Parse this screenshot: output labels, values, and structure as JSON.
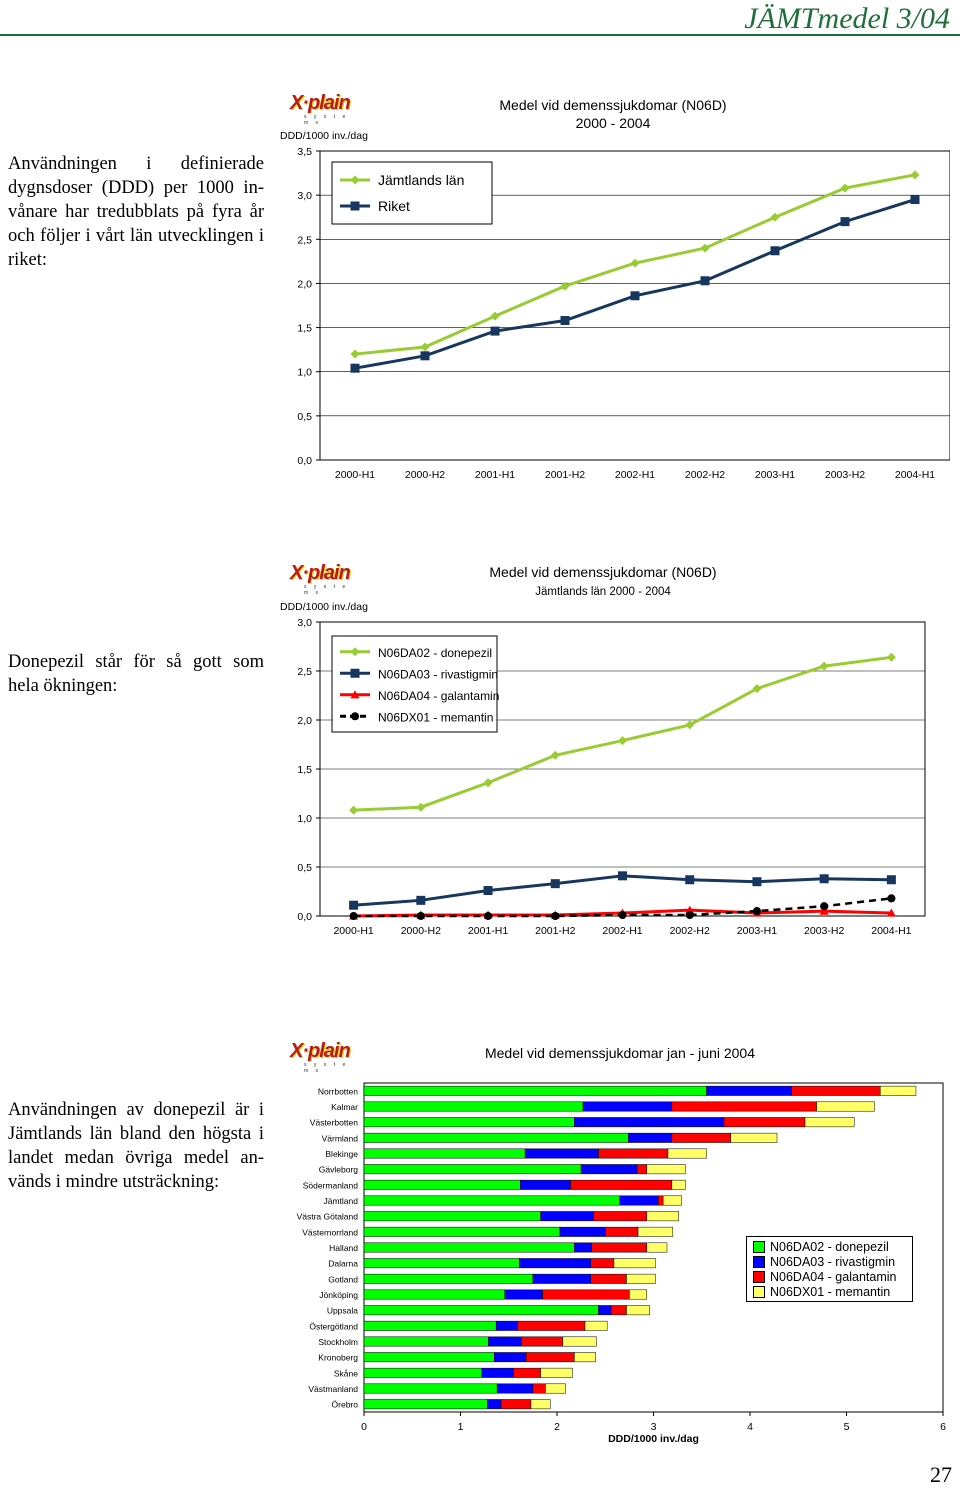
{
  "header": {
    "title": "JÄMTmedel 3/04"
  },
  "page_number": "27",
  "sections": [
    {
      "text": "Användningen i definierade dygnsdoser (DDD) per 1000 in-vånare har tredubblats på fyra år och följer i vårt län utvecklingen i riket:"
    },
    {
      "text": "Donepezil står för så gott som hela ökningen:"
    },
    {
      "text": "Användningen av donepezil är i Jämtlands län bland den högsta i landet medan övriga medel an-vänds i mindre utsträckning:"
    }
  ],
  "logo": {
    "main": "X·plain",
    "sub": "s y s t e m s"
  },
  "colors": {
    "green": "#99cc33",
    "navy": "#17375e",
    "red": "#ff0000",
    "black": "#000000",
    "bar_green": "#00ff00",
    "bar_blue": "#0000ff",
    "bar_red": "#ff0000",
    "bar_yellow": "#ffff66"
  },
  "chart_data": [
    {
      "type": "line",
      "title": "Medel vid demenssjukdomar (N06D)",
      "subtitle": "2000 - 2004",
      "ylabel": "DDD/1000 inv./dag",
      "ylim": [
        0,
        3.5
      ],
      "yticks": [
        "0,0",
        "0,5",
        "1,0",
        "1,5",
        "2,0",
        "2,5",
        "3,0",
        "3,5"
      ],
      "categories": [
        "2000-H1",
        "2000-H2",
        "2001-H1",
        "2001-H2",
        "2002-H1",
        "2002-H2",
        "2003-H1",
        "2003-H2",
        "2004-H1"
      ],
      "legend": "top-left",
      "series": [
        {
          "name": "Jämtlands län",
          "marker": "diamond",
          "color": "#99cc33",
          "values": [
            1.2,
            1.28,
            1.63,
            1.97,
            2.23,
            2.4,
            2.75,
            3.08,
            3.23
          ]
        },
        {
          "name": "Riket",
          "marker": "square",
          "color": "#17375e",
          "values": [
            1.04,
            1.18,
            1.46,
            1.58,
            1.86,
            2.03,
            2.37,
            2.7,
            2.95
          ]
        }
      ]
    },
    {
      "type": "line",
      "title": "Medel vid demenssjukdomar  (N06D)",
      "subtitle": "Jämtlands län 2000 - 2004",
      "ylabel": "DDD/1000 inv./dag",
      "ylim": [
        0,
        3.0
      ],
      "yticks": [
        "0,0",
        "0,5",
        "1,0",
        "1,5",
        "2,0",
        "2,5",
        "3,0"
      ],
      "categories": [
        "2000-H1",
        "2000-H2",
        "2001-H1",
        "2001-H2",
        "2002-H1",
        "2002-H2",
        "2003-H1",
        "2003-H2",
        "2004-H1"
      ],
      "legend": "top-left",
      "series": [
        {
          "name": "N06DA02 - donepezil",
          "marker": "diamond",
          "color": "#99cc33",
          "values": [
            1.08,
            1.11,
            1.36,
            1.64,
            1.79,
            1.95,
            2.32,
            2.55,
            2.64
          ]
        },
        {
          "name": "N06DA03 - rivastigmin",
          "marker": "square",
          "color": "#17375e",
          "values": [
            0.11,
            0.16,
            0.26,
            0.33,
            0.41,
            0.37,
            0.35,
            0.38,
            0.37
          ]
        },
        {
          "name": "N06DA04 - galantamin",
          "marker": "triangle",
          "color": "#ff0000",
          "values": [
            0.0,
            0.01,
            0.01,
            0.01,
            0.03,
            0.06,
            0.03,
            0.05,
            0.03
          ]
        },
        {
          "name": "N06DX01 - memantin",
          "marker": "circle",
          "color": "#000000",
          "dashed": true,
          "values": [
            0.0,
            0.0,
            0.0,
            0.0,
            0.01,
            0.01,
            0.05,
            0.1,
            0.18
          ]
        }
      ]
    },
    {
      "type": "bar",
      "orientation": "horizontal",
      "stacked": true,
      "title": "Medel vid demenssjukdomar jan - juni 2004",
      "xlabel": "DDD/1000 inv./dag",
      "xlim": [
        0,
        6
      ],
      "xticks": [
        "0",
        "1",
        "2",
        "3",
        "4",
        "5",
        "6"
      ],
      "legend": "right",
      "categories": [
        "Norrbotten",
        "Kalmar",
        "Västerbotten",
        "Värmland",
        "Blekinge",
        "Gävleborg",
        "Södermanland",
        "Jämtland",
        "Västra Götaland",
        "Västernorrland",
        "Halland",
        "Dalarna",
        "Gotland",
        "Jönköping",
        "Uppsala",
        "Östergötland",
        "Stockholm",
        "Kronoberg",
        "Skåne",
        "Västmanland",
        "Örebro"
      ],
      "series": [
        {
          "name": "N06DA02 - donepezil",
          "color": "#00ff00",
          "values": [
            3.55,
            2.27,
            2.18,
            2.74,
            1.67,
            2.25,
            1.62,
            2.65,
            1.83,
            2.03,
            2.18,
            1.61,
            1.75,
            1.46,
            2.43,
            1.37,
            1.29,
            1.35,
            1.22,
            1.38,
            1.28
          ]
        },
        {
          "name": "N06DA03 - rivastigmin",
          "color": "#0000ff",
          "values": [
            0.88,
            0.92,
            1.55,
            0.45,
            0.76,
            0.58,
            0.52,
            0.4,
            0.55,
            0.47,
            0.18,
            0.74,
            0.6,
            0.39,
            0.13,
            0.22,
            0.34,
            0.33,
            0.33,
            0.37,
            0.14
          ]
        },
        {
          "name": "N06DA04 - galantamin",
          "color": "#ff0000",
          "values": [
            0.92,
            1.5,
            0.84,
            0.61,
            0.72,
            0.1,
            1.05,
            0.05,
            0.55,
            0.34,
            0.57,
            0.24,
            0.37,
            0.9,
            0.16,
            0.7,
            0.43,
            0.5,
            0.28,
            0.13,
            0.31
          ]
        },
        {
          "name": "N06DX01 - memantin",
          "color": "#ffff66",
          "values": [
            0.37,
            0.6,
            0.51,
            0.48,
            0.4,
            0.4,
            0.14,
            0.19,
            0.33,
            0.36,
            0.21,
            0.43,
            0.3,
            0.18,
            0.24,
            0.23,
            0.35,
            0.22,
            0.33,
            0.21,
            0.2
          ]
        }
      ]
    }
  ]
}
